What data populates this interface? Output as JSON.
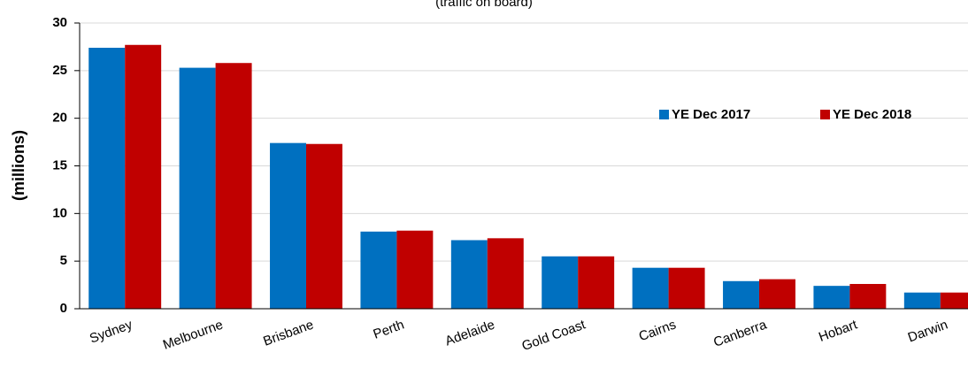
{
  "chart_data": {
    "type": "bar",
    "subtitle": "(traffic on board)",
    "y_label": "(millions)",
    "categories": [
      "Sydney",
      "Melbourne",
      "Brisbane",
      "Perth",
      "Adelaide",
      "Gold Coast",
      "Cairns",
      "Canberra",
      "Hobart",
      "Darwin"
    ],
    "series": [
      {
        "name": "YE Dec 2017",
        "color": "#0070c0",
        "values": [
          27.4,
          25.3,
          17.4,
          8.1,
          7.2,
          5.5,
          4.3,
          2.9,
          2.4,
          1.7
        ]
      },
      {
        "name": "YE Dec 2018",
        "color": "#c00000",
        "values": [
          27.7,
          25.8,
          17.3,
          8.2,
          7.4,
          5.5,
          4.3,
          3.1,
          2.6,
          1.7
        ]
      }
    ],
    "ylim": [
      0,
      30
    ],
    "yticks": [
      0,
      5,
      10,
      15,
      20,
      25,
      30
    ],
    "grid": true
  }
}
